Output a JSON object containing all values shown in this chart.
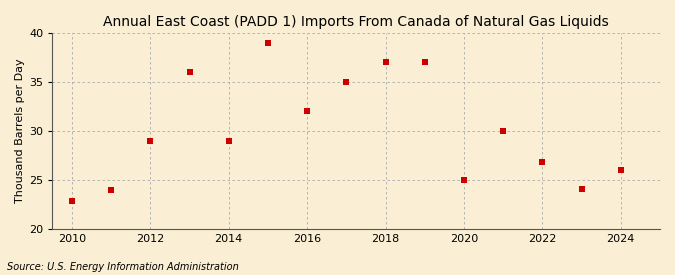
{
  "title": "Annual East Coast (PADD 1) Imports From Canada of Natural Gas Liquids",
  "ylabel": "Thousand Barrels per Day",
  "source": "Source: U.S. Energy Information Administration",
  "background_color": "#faefd4",
  "years": [
    2010,
    2011,
    2012,
    2013,
    2014,
    2015,
    2016,
    2017,
    2018,
    2019,
    2020,
    2021,
    2022,
    2023,
    2024
  ],
  "values": [
    22.8,
    23.9,
    29.0,
    36.0,
    29.0,
    39.0,
    32.0,
    35.0,
    37.0,
    37.0,
    25.0,
    30.0,
    26.8,
    24.0,
    26.0
  ],
  "marker_color": "#cc0000",
  "marker": "s",
  "marker_size": 4,
  "ylim": [
    20,
    40
  ],
  "yticks": [
    20,
    25,
    30,
    35,
    40
  ],
  "xticks": [
    2010,
    2012,
    2014,
    2016,
    2018,
    2020,
    2022,
    2024
  ],
  "grid_color": "#aaaaaa",
  "title_fontsize": 10,
  "axis_label_fontsize": 8,
  "tick_fontsize": 8,
  "source_fontsize": 7
}
